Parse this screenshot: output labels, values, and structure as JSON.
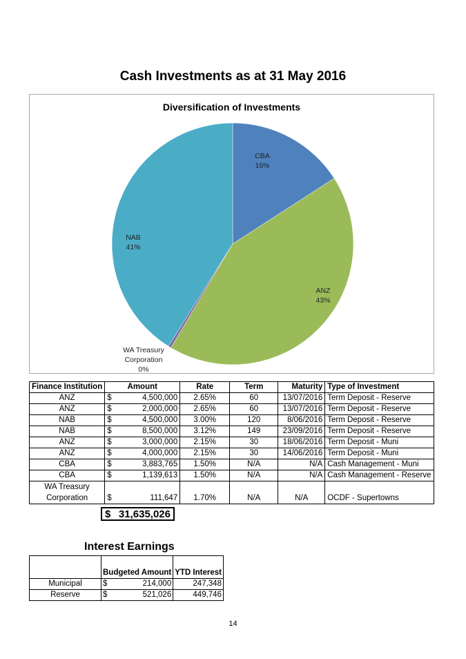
{
  "page_title": "Cash Investments as at 31 May 2016",
  "chart_data": {
    "type": "pie",
    "title": "Diversification of Investments",
    "slices": [
      {
        "label": "CBA",
        "pct_label": "16%",
        "value": 5023378,
        "color": "#4F81BD"
      },
      {
        "label": "ANZ",
        "pct_label": "43%",
        "value": 13500000,
        "color": "#9BBB59"
      },
      {
        "label": "WA Treasury Corporation",
        "pct_label": "0%",
        "value": 111647,
        "color": "#8064A2"
      },
      {
        "label": "NAB",
        "pct_label": "41%",
        "value": 13000000,
        "color": "#4BACC6"
      }
    ]
  },
  "investments": {
    "headers": [
      "Finance Institution",
      "Amount",
      "Rate",
      "Term",
      "Maturity",
      "Type of Investment"
    ],
    "currency": "$",
    "rows": [
      {
        "inst": "ANZ",
        "amount": "4,500,000",
        "rate": "2.65%",
        "term": "60",
        "maturity": "13/07/2016",
        "type": "Term Deposit - Reserve"
      },
      {
        "inst": "ANZ",
        "amount": "2,000,000",
        "rate": "2.65%",
        "term": "60",
        "maturity": "13/07/2016",
        "type": "Term Deposit - Reserve"
      },
      {
        "inst": "NAB",
        "amount": "4,500,000",
        "rate": "3.00%",
        "term": "120",
        "maturity": "8/06/2016",
        "type": "Term Deposit - Reserve"
      },
      {
        "inst": "NAB",
        "amount": "8,500,000",
        "rate": "3.12%",
        "term": "149",
        "maturity": "23/09/2016",
        "type": "Term Deposit - Reserve"
      },
      {
        "inst": "ANZ",
        "amount": "3,000,000",
        "rate": "2.15%",
        "term": "30",
        "maturity": "18/06/2016",
        "type": "Term Deposit - Muni"
      },
      {
        "inst": "ANZ",
        "amount": "4,000,000",
        "rate": "2.15%",
        "term": "30",
        "maturity": "14/06/2016",
        "type": "Term Deposit - Muni"
      },
      {
        "inst": "CBA",
        "amount": "3,883,765",
        "rate": "1.50%",
        "term": "N/A",
        "maturity": "N/A",
        "type": "Cash Management - Muni"
      },
      {
        "inst": "CBA",
        "amount": "1,139,613",
        "rate": "1.50%",
        "term": "N/A",
        "maturity": "N/A",
        "type": "Cash Management - Reserve"
      }
    ],
    "last_row": {
      "inst_line1": "WA Treasury",
      "inst_line2": "Corporation",
      "amount": "111,647",
      "rate": "1.70%",
      "term": "N/A",
      "maturity": "N/A",
      "type": "OCDF - Supertowns"
    },
    "total": "31,635,026"
  },
  "interest": {
    "title": "Interest Earnings",
    "headers": [
      "",
      "Budgeted Amount",
      "YTD Interest"
    ],
    "currency": "$",
    "rows": [
      {
        "label": "Municipal",
        "budget": "214,000",
        "ytd": "247,348"
      },
      {
        "label": "Reserve",
        "budget": "521,026",
        "ytd": "449,746"
      }
    ]
  },
  "page_number": "14"
}
